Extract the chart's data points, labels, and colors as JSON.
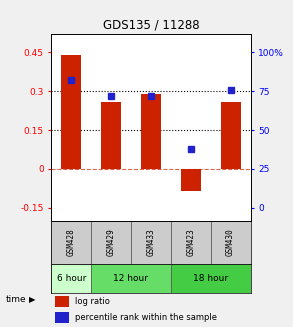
{
  "title": "GDS135 / 11288",
  "samples": [
    "GSM428",
    "GSM429",
    "GSM433",
    "GSM423",
    "GSM430"
  ],
  "log_ratio": [
    0.44,
    0.26,
    0.29,
    -0.085,
    0.26
  ],
  "percentile_rank": [
    82,
    72,
    72,
    38,
    76
  ],
  "bar_color": "#CC2200",
  "dot_color": "#2222CC",
  "left_ylim": [
    -0.2,
    0.52
  ],
  "left_yticks": [
    -0.15,
    0,
    0.15,
    0.3,
    0.45
  ],
  "right_yticks": [
    0,
    25,
    50,
    75,
    100
  ],
  "hline_positions": [
    0.15,
    0.3
  ],
  "background_color": "#F0F0F0",
  "plot_bg": "#FFFFFF",
  "sample_bg": "#CCCCCC",
  "time_groups": [
    {
      "label": "6 hour",
      "indices": [
        0
      ],
      "color": "#CCFFCC"
    },
    {
      "label": "12 hour",
      "indices": [
        1,
        2
      ],
      "color": "#66DD66"
    },
    {
      "label": "18 hour",
      "indices": [
        3,
        4
      ],
      "color": "#44CC44"
    }
  ]
}
